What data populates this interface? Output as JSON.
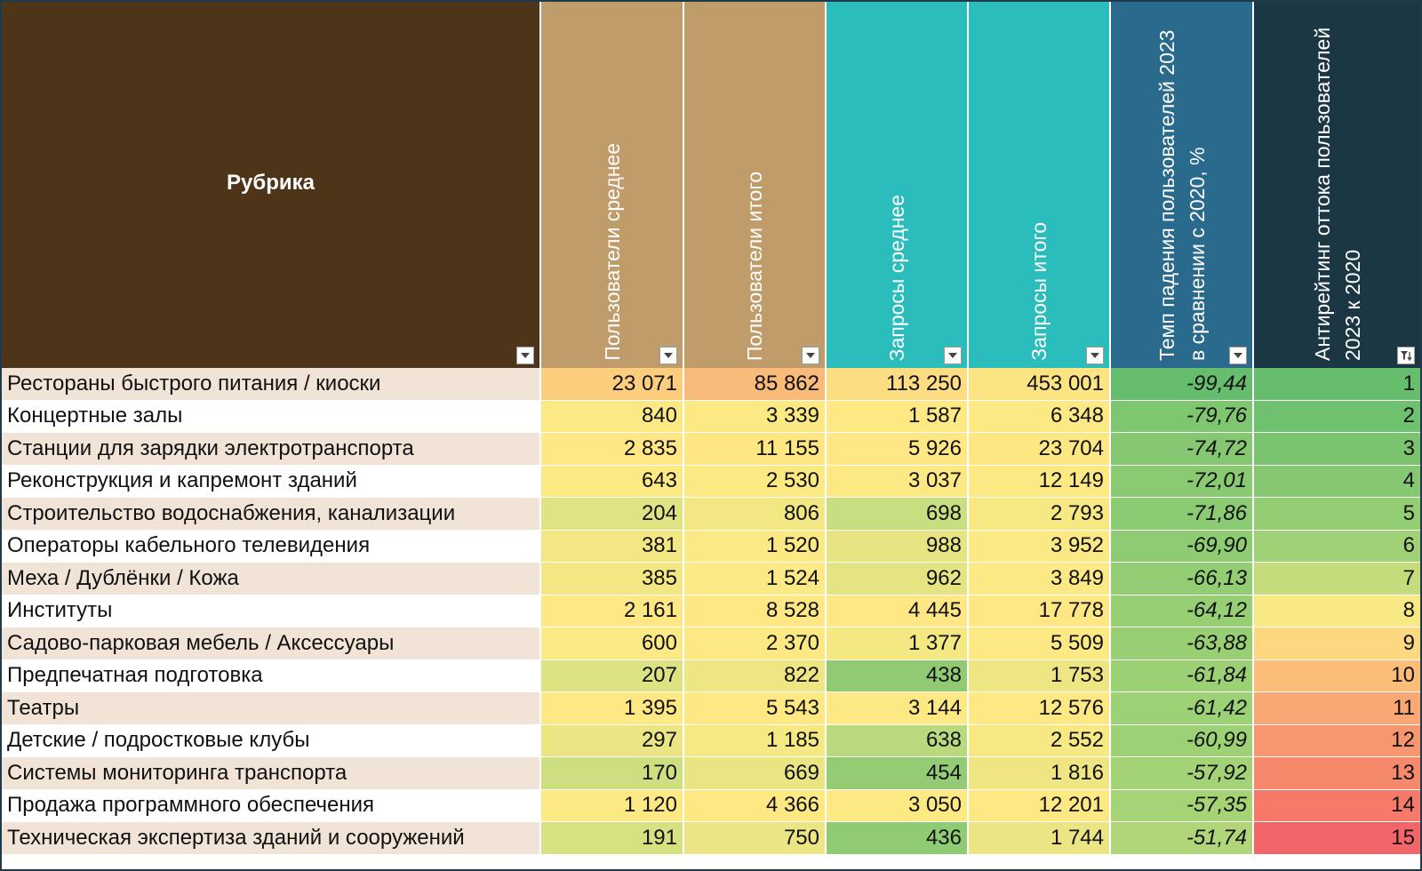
{
  "table": {
    "columns": [
      {
        "label": "Рубрика",
        "color": "#4e3519",
        "vertical": false,
        "filter_icon": "dropdown-arrow-icon"
      },
      {
        "label": "Пользователи среднее",
        "color": "#bf9c6a",
        "vertical": true,
        "filter_icon": "dropdown-arrow-icon"
      },
      {
        "label": "Пользователи итого",
        "color": "#bf9c6a",
        "vertical": true,
        "filter_icon": "dropdown-arrow-icon"
      },
      {
        "label": "Запросы среднее",
        "color": "#2bbcbc",
        "vertical": true,
        "filter_icon": "dropdown-arrow-icon"
      },
      {
        "label": "Запросы итого",
        "color": "#2bbcbc",
        "vertical": true,
        "filter_icon": "dropdown-arrow-icon"
      },
      {
        "label": "Темп падения пользователей 2023 в сравнении с 2020, %",
        "color": "#2a6a8c",
        "vertical": true,
        "filter_icon": "dropdown-arrow-icon"
      },
      {
        "label": "Антирейтинг оттока пользователей 2023 к 2020",
        "color": "#1c3744",
        "vertical": true,
        "filter_icon": "sort-filter-icon"
      }
    ],
    "rows": [
      {
        "rubric": "Рестораны быстрого питания / киоски",
        "users_avg": "23 071",
        "users_total": "85 862",
        "req_avg": "113 250",
        "req_total": "453 001",
        "drop_pct": "-99,44",
        "rank": "1",
        "colors": [
          "#fbcd7c",
          "#f8bb7a",
          "#fddd82",
          "#fde482",
          "#67bd6e",
          "#67bd6e"
        ]
      },
      {
        "rubric": "Концертные залы",
        "users_avg": "840",
        "users_total": "3 339",
        "req_avg": "1 587",
        "req_total": "6 348",
        "drop_pct": "-79,76",
        "rank": "2",
        "colors": [
          "#fde984",
          "#fde984",
          "#fde884",
          "#fde984",
          "#7fc671",
          "#6ec16f"
        ]
      },
      {
        "rubric": "Станции для зарядки электротранспорта",
        "users_avg": "2 835",
        "users_total": "11 155",
        "req_avg": "5 926",
        "req_total": "23 704",
        "drop_pct": "-74,72",
        "rank": "3",
        "colors": [
          "#fee784",
          "#fee683",
          "#fee784",
          "#fde783",
          "#86c872",
          "#7ac470"
        ]
      },
      {
        "rubric": "Реконструкция и капремонт зданий",
        "users_avg": "643",
        "users_total": "2 530",
        "req_avg": "3 037",
        "req_total": "12 149",
        "drop_pct": "-72,01",
        "rank": "4",
        "colors": [
          "#fbe984",
          "#fbe984",
          "#fde984",
          "#fde984",
          "#8aca73",
          "#86c872"
        ]
      },
      {
        "rubric": "Строительство водоснабжения, канализации",
        "users_avg": "204",
        "users_total": "806",
        "req_avg": "698",
        "req_total": "2 793",
        "drop_pct": "-71,86",
        "rank": "5",
        "colors": [
          "#e0e383",
          "#f2e783",
          "#c8df81",
          "#f6e883",
          "#8bcb73",
          "#93cd74"
        ]
      },
      {
        "rubric": "Операторы кабельного телевидения",
        "users_avg": "381",
        "users_total": "1 520",
        "req_avg": "988",
        "req_total": "3 952",
        "drop_pct": "-69,90",
        "rank": "6",
        "colors": [
          "#f3e783",
          "#fae984",
          "#e6e483",
          "#fae984",
          "#8ecc73",
          "#a1d176"
        ]
      },
      {
        "rubric": "Меха / Дублёнки / Кожа",
        "users_avg": "385",
        "users_total": "1 524",
        "req_avg": "962",
        "req_total": "3 849",
        "drop_pct": "-66,13",
        "rank": "7",
        "colors": [
          "#f3e783",
          "#fae984",
          "#e4e483",
          "#fae984",
          "#94ce74",
          "#c4dc7c"
        ]
      },
      {
        "rubric": "Институты",
        "users_avg": "2 161",
        "users_total": "8 528",
        "req_avg": "4 445",
        "req_total": "17 778",
        "drop_pct": "-64,12",
        "rank": "8",
        "colors": [
          "#fee784",
          "#fee784",
          "#fee784",
          "#fee784",
          "#97cf74",
          "#f8e984"
        ]
      },
      {
        "rubric": "Садово-парковая мебель / Аксессуары",
        "users_avg": "600",
        "users_total": "2 370",
        "req_avg": "1 377",
        "req_total": "5 509",
        "drop_pct": "-63,88",
        "rank": "9",
        "colors": [
          "#fae984",
          "#fde984",
          "#f4e883",
          "#fde984",
          "#98cf75",
          "#fed880"
        ]
      },
      {
        "rubric": "Предпечатная подготовка",
        "users_avg": "207",
        "users_total": "822",
        "req_avg": "438",
        "req_total": "1 753",
        "drop_pct": "-61,84",
        "rank": "10",
        "colors": [
          "#dde283",
          "#eee683",
          "#90cb73",
          "#eee683",
          "#9cd075",
          "#fbbd78"
        ]
      },
      {
        "rubric": "Театры",
        "users_avg": "1 395",
        "users_total": "5 543",
        "req_avg": "3 144",
        "req_total": "12 576",
        "drop_pct": "-61,42",
        "rank": "11",
        "colors": [
          "#fee884",
          "#fee884",
          "#fde984",
          "#fde884",
          "#9dd175",
          "#f9a874"
        ]
      },
      {
        "rubric": "Детские / подростковые клубы",
        "users_avg": "297",
        "users_total": "1 185",
        "req_avg": "638",
        "req_total": "2 552",
        "drop_pct": "-60,99",
        "rank": "12",
        "colors": [
          "#ebe583",
          "#f6e883",
          "#b8d97c",
          "#f6e883",
          "#9dd175",
          "#f8976f"
        ]
      },
      {
        "rubric": "Системы мониторинга транспорта",
        "users_avg": "170",
        "users_total": "669",
        "req_avg": "454",
        "req_total": "1 816",
        "drop_pct": "-57,92",
        "rank": "13",
        "colors": [
          "#cedf81",
          "#eae583",
          "#93cc74",
          "#efe683",
          "#a4d276",
          "#f6886c"
        ]
      },
      {
        "rubric": "Продажа программного обеспечения",
        "users_avg": "1 120",
        "users_total": "4 366",
        "req_avg": "3 050",
        "req_total": "12 201",
        "drop_pct": "-57,35",
        "rank": "14",
        "colors": [
          "#fde984",
          "#fee884",
          "#fde984",
          "#fde884",
          "#a5d376",
          "#f57a69"
        ]
      },
      {
        "rubric": "Техническая экспертиза зданий и сооружений",
        "users_avg": "191",
        "users_total": "750",
        "req_avg": "436",
        "req_total": "1 744",
        "drop_pct": "-51,74",
        "rank": "15",
        "colors": [
          "#d8e182",
          "#ece583",
          "#8ecb73",
          "#ece583",
          "#b0d679",
          "#f2666a"
        ]
      }
    ]
  }
}
